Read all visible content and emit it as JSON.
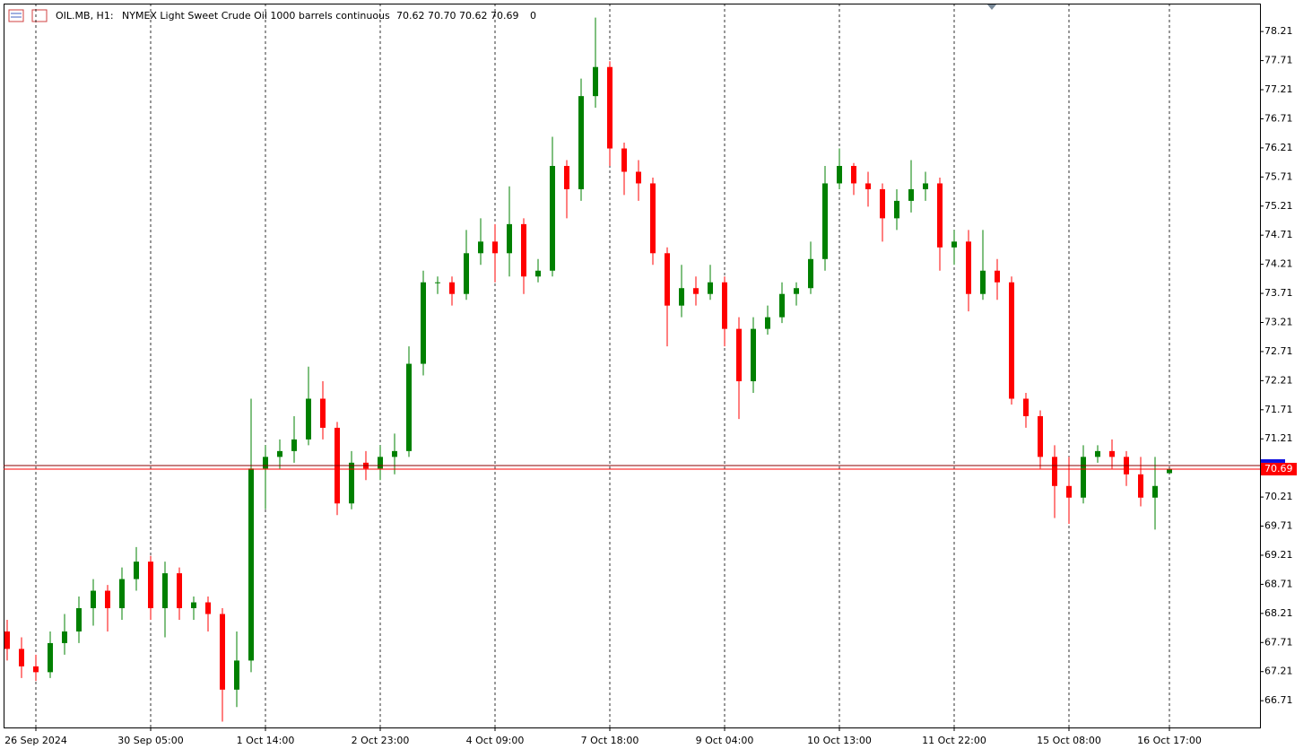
{
  "chart_data": {
    "type": "candlestick",
    "symbol": "OIL.MB, H1:",
    "description": "NYMEX Light Sweet Crude Oil 1000 barrels continuous",
    "ohlc_label": "70.62 70.70 70.62 70.69",
    "spread": 0,
    "last_price": 70.69,
    "up_color": "#008000",
    "down_color": "#ff0000",
    "price_line_color": "#ff0000",
    "grid": true,
    "categories": [
      null,
      null,
      "26 Sep 2024",
      null,
      null,
      null,
      null,
      null,
      null,
      null,
      "30 Sep 05:00",
      null,
      null,
      null,
      null,
      null,
      null,
      null,
      "1 Oct 14:00",
      null,
      null,
      null,
      null,
      null,
      null,
      null,
      "2 Oct 23:00",
      null,
      null,
      null,
      null,
      null,
      null,
      null,
      "4 Oct 09:00",
      null,
      null,
      null,
      null,
      null,
      null,
      null,
      "7 Oct 18:00",
      null,
      null,
      null,
      null,
      null,
      null,
      null,
      "9 Oct 04:00",
      null,
      null,
      null,
      null,
      null,
      null,
      null,
      "10 Oct 13:00",
      null,
      null,
      null,
      null,
      null,
      null,
      null,
      "11 Oct 22:00",
      null,
      null,
      null,
      null,
      null,
      null,
      null,
      "15 Oct 08:00",
      null,
      null,
      null,
      null,
      null,
      null,
      "16 Oct 17:00"
    ],
    "open": [
      67.9,
      67.6,
      67.3,
      67.2,
      67.7,
      67.9,
      68.3,
      68.6,
      68.3,
      68.8,
      69.1,
      68.3,
      68.9,
      68.3,
      68.4,
      68.2,
      66.9,
      67.4,
      70.7,
      70.9,
      71.0,
      71.2,
      71.9,
      71.4,
      70.1,
      70.8,
      70.7,
      70.9,
      71.0,
      72.5,
      73.9,
      73.9,
      73.7,
      74.4,
      74.6,
      74.4,
      74.9,
      74.0,
      74.1,
      75.9,
      75.5,
      77.1,
      77.6,
      76.2,
      75.8,
      75.6,
      74.4,
      73.5,
      73.8,
      73.7,
      73.9,
      73.1,
      72.2,
      73.1,
      73.3,
      73.7,
      73.8,
      74.3,
      75.6,
      75.9,
      75.6,
      75.5,
      75.0,
      75.3,
      75.5,
      75.6,
      74.5,
      74.6,
      73.7,
      74.1,
      73.9,
      71.9,
      71.6,
      70.9,
      70.4,
      70.2,
      70.9,
      71.0,
      70.9,
      70.6,
      70.2,
      70.62
    ],
    "high": [
      68.1,
      67.8,
      67.5,
      67.9,
      68.2,
      68.5,
      68.8,
      68.7,
      69.0,
      69.35,
      69.2,
      69.1,
      69.0,
      68.5,
      68.5,
      68.3,
      67.9,
      71.9,
      71.1,
      71.2,
      71.6,
      72.45,
      72.2,
      71.5,
      71.0,
      71.0,
      71.1,
      71.3,
      72.8,
      74.1,
      74.0,
      74.0,
      74.8,
      75.0,
      74.9,
      75.55,
      75.0,
      74.3,
      76.4,
      76.0,
      77.4,
      78.45,
      77.7,
      76.3,
      76.0,
      75.7,
      74.5,
      74.2,
      74.0,
      74.2,
      74.0,
      73.3,
      73.3,
      73.5,
      73.9,
      73.9,
      74.6,
      75.9,
      76.2,
      75.95,
      75.8,
      75.6,
      75.5,
      76.0,
      75.8,
      75.7,
      74.8,
      74.8,
      74.8,
      74.3,
      74.0,
      72.0,
      71.7,
      71.1,
      70.9,
      71.1,
      71.1,
      71.2,
      71.0,
      70.9,
      70.9,
      70.7
    ],
    "low": [
      67.4,
      67.1,
      67.05,
      67.1,
      67.5,
      67.7,
      68.0,
      67.9,
      68.1,
      68.6,
      68.1,
      67.8,
      68.1,
      68.1,
      67.9,
      66.35,
      66.6,
      67.2,
      70.0,
      70.7,
      70.8,
      71.1,
      71.2,
      69.9,
      70.0,
      70.5,
      70.5,
      70.6,
      70.9,
      72.3,
      73.7,
      73.5,
      73.6,
      74.2,
      73.9,
      74.0,
      73.7,
      73.9,
      74.0,
      75.0,
      75.3,
      76.9,
      75.9,
      75.4,
      75.3,
      74.2,
      72.8,
      73.3,
      73.5,
      73.6,
      72.8,
      71.55,
      72.0,
      73.0,
      73.2,
      73.5,
      73.7,
      74.1,
      75.5,
      75.4,
      75.2,
      74.6,
      74.8,
      75.1,
      75.3,
      74.1,
      74.2,
      73.4,
      73.6,
      73.6,
      71.8,
      71.4,
      70.7,
      69.85,
      69.75,
      70.1,
      70.8,
      70.7,
      70.4,
      70.05,
      69.65,
      70.62
    ],
    "close": [
      67.6,
      67.3,
      67.2,
      67.7,
      67.9,
      68.3,
      68.6,
      68.3,
      68.8,
      69.1,
      68.3,
      68.9,
      68.3,
      68.4,
      68.2,
      66.9,
      67.4,
      70.7,
      70.9,
      71.0,
      71.2,
      71.9,
      71.4,
      70.1,
      70.8,
      70.7,
      70.9,
      71.0,
      72.5,
      73.9,
      73.9,
      73.7,
      74.4,
      74.6,
      74.4,
      74.9,
      74.0,
      74.1,
      75.9,
      75.5,
      77.1,
      77.6,
      76.2,
      75.8,
      75.6,
      74.4,
      73.5,
      73.8,
      73.7,
      73.9,
      73.1,
      72.2,
      73.1,
      73.3,
      73.7,
      73.8,
      74.3,
      75.6,
      75.9,
      75.6,
      75.5,
      75.0,
      75.3,
      75.5,
      75.6,
      74.5,
      74.6,
      73.7,
      74.1,
      73.9,
      71.9,
      71.6,
      70.9,
      70.4,
      70.2,
      70.9,
      71.0,
      70.9,
      70.6,
      70.2,
      70.4,
      70.69
    ],
    "ylim": [
      66.25,
      78.69
    ],
    "yticks": [
      78.21,
      77.71,
      77.21,
      76.71,
      76.21,
      75.71,
      75.21,
      74.71,
      74.21,
      73.71,
      73.21,
      72.71,
      72.21,
      71.71,
      71.21,
      70.71,
      70.21,
      69.71,
      69.21,
      68.71,
      68.21,
      67.71,
      67.21,
      66.71
    ]
  }
}
